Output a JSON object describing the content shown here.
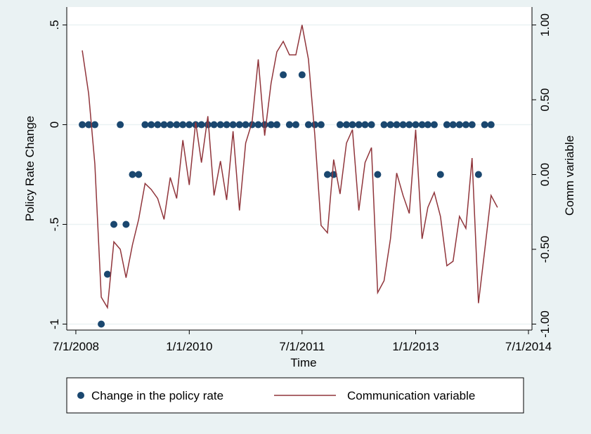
{
  "chart_data": {
    "type": "scatter-line",
    "x_label": "Time",
    "y_label": "Policy Rate Change",
    "y2_label": "Comm variable",
    "x": [
      "8/1/2008",
      "9/1/2008",
      "10/1/2008",
      "11/1/2008",
      "12/1/2008",
      "1/1/2009",
      "2/1/2009",
      "3/1/2009",
      "4/1/2009",
      "5/1/2009",
      "6/1/2009",
      "7/1/2009",
      "8/1/2009",
      "9/1/2009",
      "10/1/2009",
      "11/1/2009",
      "12/1/2009",
      "1/1/2010",
      "2/1/2010",
      "3/1/2010",
      "4/1/2010",
      "5/1/2010",
      "6/1/2010",
      "7/1/2010",
      "8/1/2010",
      "9/1/2010",
      "10/1/2010",
      "11/1/2010",
      "12/1/2010",
      "1/1/2011",
      "2/1/2011",
      "3/1/2011",
      "4/1/2011",
      "5/1/2011",
      "6/1/2011",
      "7/1/2011",
      "8/1/2011",
      "9/1/2011",
      "10/1/2011",
      "11/1/2011",
      "12/1/2011",
      "1/1/2012",
      "2/1/2012",
      "3/1/2012",
      "4/1/2012",
      "5/1/2012",
      "6/1/2012",
      "7/1/2012",
      "8/1/2012",
      "9/1/2012",
      "10/1/2012",
      "11/1/2012",
      "12/1/2012",
      "1/1/2013",
      "2/1/2013",
      "3/1/2013",
      "4/1/2013",
      "5/1/2013",
      "6/1/2013",
      "7/1/2013",
      "8/1/2013",
      "9/1/2013",
      "10/1/2013",
      "11/1/2013",
      "12/1/2013",
      "1/1/2014",
      "2/1/2014"
    ],
    "series": [
      {
        "name": "Change in the policy rate",
        "kind": "scatter",
        "color": "#1a476f",
        "values": [
          0,
          0,
          0,
          -1,
          -0.75,
          -0.5,
          0,
          -0.5,
          -0.25,
          -0.25,
          0,
          0,
          0,
          0,
          0,
          0,
          0,
          0,
          0,
          0,
          0,
          0,
          0,
          0,
          0,
          0,
          0,
          0,
          0,
          0,
          0,
          0,
          0.25,
          0,
          0,
          0.25,
          0,
          0,
          0,
          -0.25,
          -0.25,
          0,
          0,
          0,
          0,
          0,
          0,
          -0.25,
          0,
          0,
          0,
          0,
          0,
          0,
          0,
          0,
          0,
          -0.25,
          0,
          0,
          0,
          0,
          0,
          -0.25,
          0,
          0,
          null
        ]
      },
      {
        "name": "Communication variable",
        "kind": "line",
        "axis": "y2",
        "color": "#90353b",
        "values": [
          0.83,
          0.54,
          0.07,
          -0.82,
          -0.89,
          -0.45,
          -0.5,
          -0.69,
          -0.47,
          -0.3,
          -0.06,
          -0.1,
          -0.16,
          -0.3,
          -0.02,
          -0.16,
          0.23,
          -0.07,
          0.35,
          0.08,
          0.39,
          -0.14,
          0.09,
          -0.17,
          0.29,
          -0.24,
          0.21,
          0.35,
          0.77,
          0.26,
          0.61,
          0.82,
          0.89,
          0.8,
          0.8,
          1.0,
          0.77,
          0.26,
          -0.34,
          -0.39,
          0.1,
          -0.13,
          0.21,
          0.3,
          -0.24,
          0.08,
          0.18,
          -0.79,
          -0.71,
          -0.43,
          0.01,
          -0.14,
          -0.26,
          0.3,
          -0.43,
          -0.22,
          -0.12,
          -0.28,
          -0.61,
          -0.58,
          -0.28,
          -0.36,
          0.11,
          -0.86,
          -0.51,
          -0.14,
          -0.22
        ]
      }
    ],
    "xlim": [
      "5/18/2008",
      "7/18/2014"
    ],
    "xticks": [
      "7/1/2008",
      "1/1/2010",
      "7/1/2011",
      "1/1/2013",
      "7/1/2014"
    ],
    "ylim": [
      -1.03,
      0.59
    ],
    "yticks": [
      {
        "value": 0.5,
        "label": ".5"
      },
      0,
      {
        "value": -0.5,
        "label": "-.5"
      },
      -1
    ],
    "y2lim": [
      -1.04,
      1.12
    ],
    "y2ticks": [
      {
        "value": 1,
        "label": "1.00"
      },
      {
        "value": 0.5,
        "label": "0.50"
      },
      {
        "value": 0,
        "label": "0.00"
      },
      {
        "value": -0.5,
        "label": "-0.50"
      },
      {
        "value": -1,
        "label": "-1.00"
      }
    ],
    "grid": true,
    "legend": "bottom"
  }
}
